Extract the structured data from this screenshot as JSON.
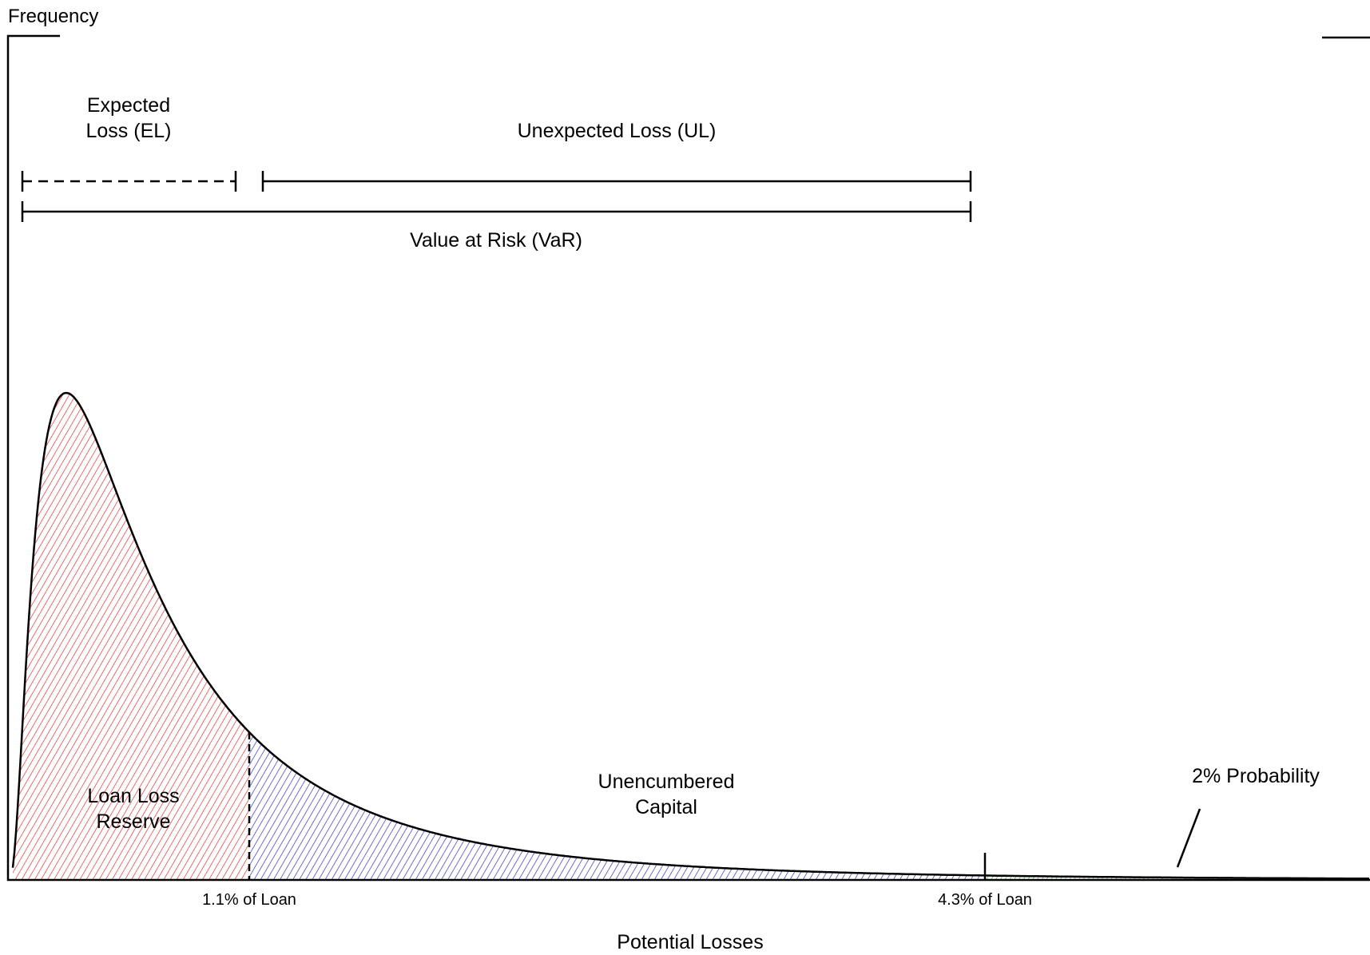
{
  "axis": {
    "y_label": "Frequency",
    "x_label": "Potential Losses"
  },
  "brackets": {
    "expected_loss": {
      "line1": "Expected",
      "line2": "Loss (EL)"
    },
    "unexpected_loss": "Unexpected Loss (UL)",
    "value_at_risk": "Value at Risk (VaR)"
  },
  "regions": {
    "loan_loss_reserve": {
      "line1": "Loan Loss",
      "line2": "Reserve",
      "color": "#e02020"
    },
    "unencumbered_capital": {
      "line1": "Unencumbered",
      "line2": "Capital",
      "color": "#2020c0"
    },
    "tail": {
      "label": "2% Probability",
      "color": "#20b020"
    }
  },
  "markers": {
    "expected_loss": "1.1% of Loan",
    "var_threshold": "4.3% of Loan"
  }
}
